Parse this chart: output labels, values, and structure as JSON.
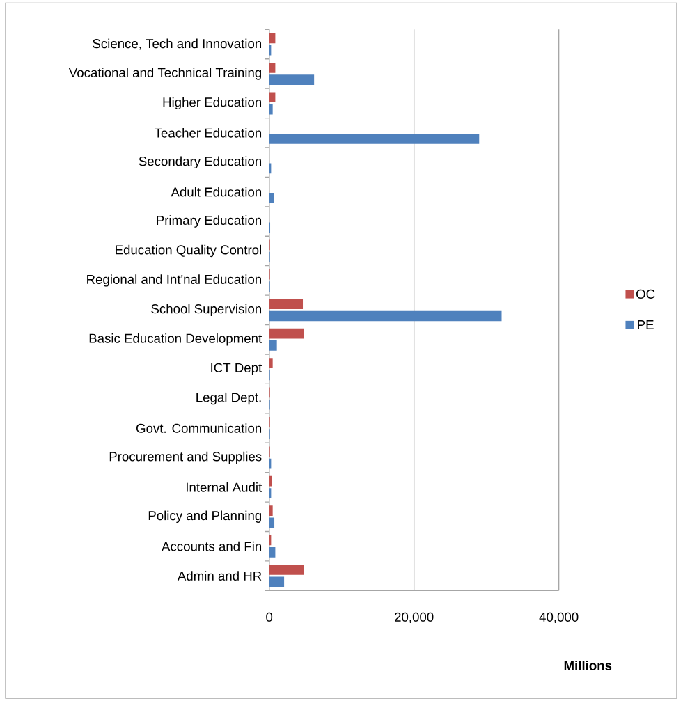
{
  "chart_data": {
    "type": "bar",
    "orientation": "horizontal",
    "categories": [
      "Science, Tech and Innovation",
      "Vocational and Technical Training",
      "Higher Education",
      "Teacher Education",
      "Secondary Education",
      "Adult Education",
      "Primary Education",
      "Education Quality Control",
      "Regional and Int'nal Education",
      "School Supervision",
      "Basic Education Development",
      "ICT Dept",
      "Legal Dept.",
      "Govt. Communication",
      "Procurement and Supplies",
      "Internal Audit",
      "Policy and Planning",
      "Accounts and Fin",
      "Admin and HR"
    ],
    "series": [
      {
        "name": "OC",
        "color": "#c0504d",
        "values": [
          840,
          840,
          840,
          0,
          0,
          0,
          0,
          100,
          100,
          4650,
          4760,
          480,
          100,
          100,
          100,
          390,
          480,
          260,
          4760
        ]
      },
      {
        "name": "PE",
        "color": "#4f81bd",
        "values": [
          260,
          6200,
          480,
          29000,
          260,
          610,
          130,
          100,
          100,
          32100,
          1060,
          100,
          100,
          100,
          260,
          260,
          710,
          840,
          2060
        ]
      }
    ],
    "xlim": [
      0,
      40000
    ],
    "xticks": [
      0,
      {
        "value": 20000,
        "label": "20,000"
      },
      {
        "value": 40000,
        "label": "40,000"
      }
    ],
    "xlabel": "**Millions**",
    "grid": "x",
    "legend": "right"
  }
}
